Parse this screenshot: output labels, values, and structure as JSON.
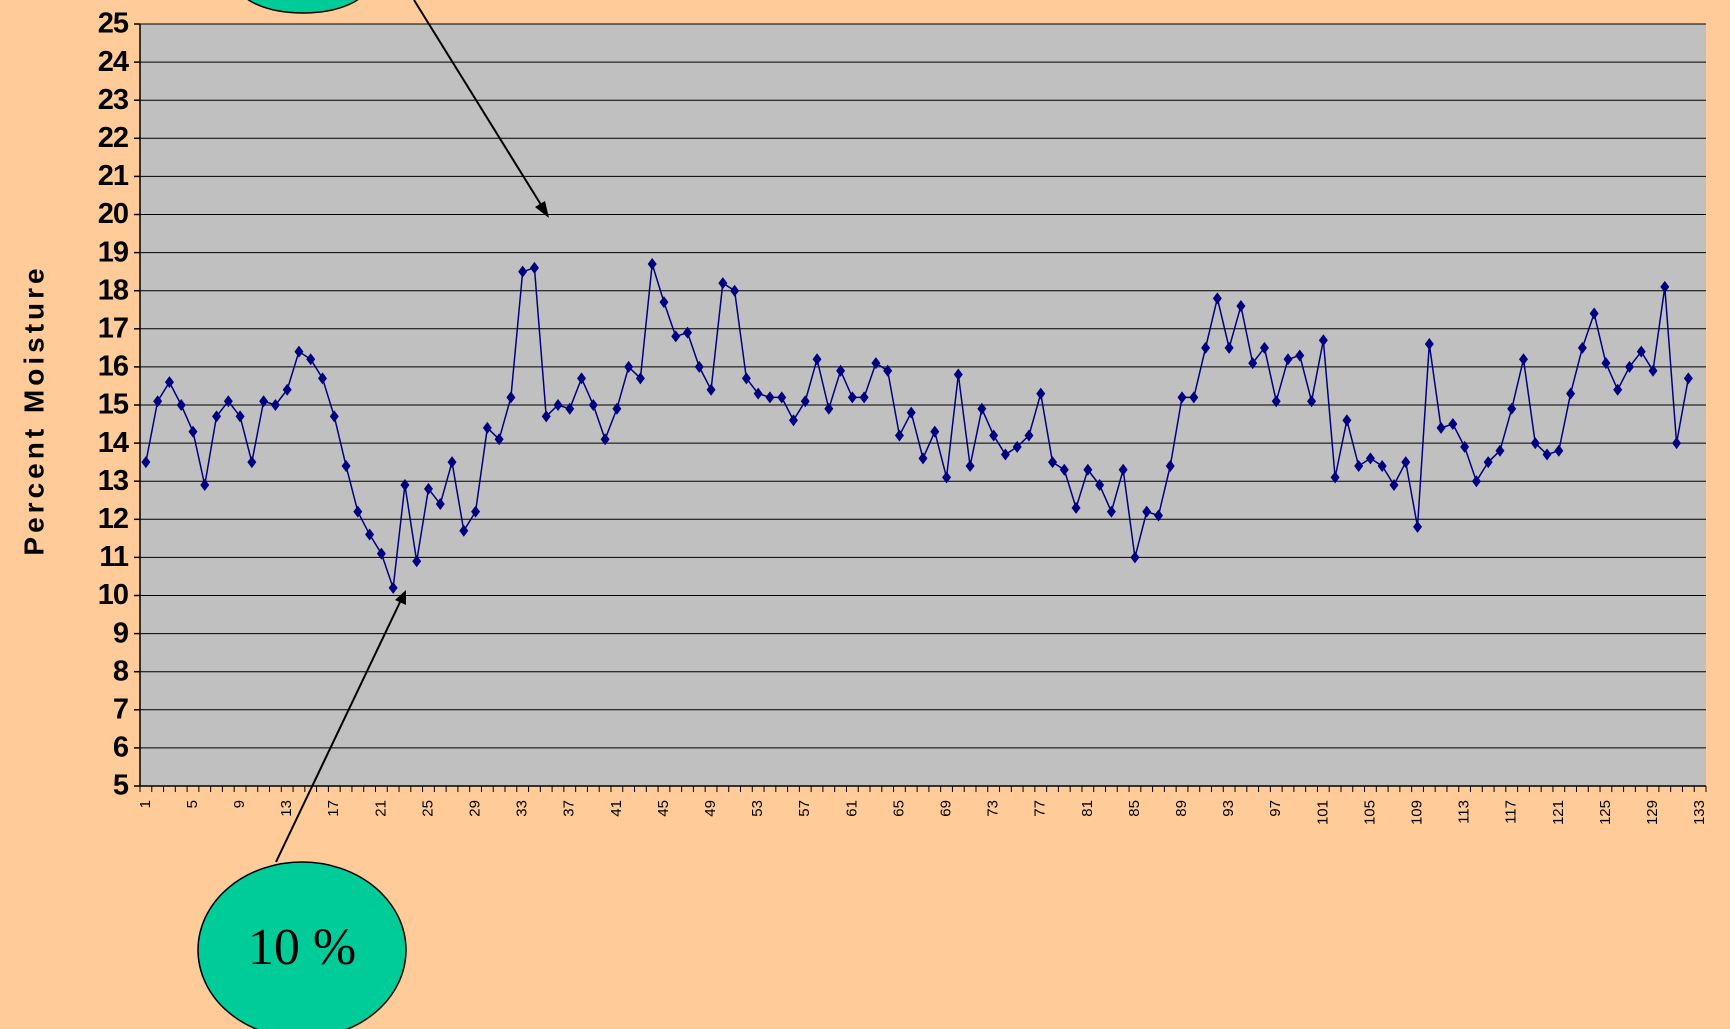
{
  "chart_data": {
    "type": "line",
    "y_label": "Percent Moisture",
    "categories": [
      1,
      null,
      null,
      null,
      5,
      null,
      null,
      null,
      9,
      null,
      null,
      null,
      13,
      null,
      null,
      null,
      17,
      null,
      null,
      null,
      21,
      null,
      null,
      null,
      25,
      null,
      null,
      null,
      29,
      null,
      null,
      null,
      33,
      null,
      null,
      null,
      37,
      null,
      null,
      null,
      41,
      null,
      null,
      null,
      45,
      null,
      null,
      null,
      49,
      null,
      null,
      null,
      53,
      null,
      null,
      null,
      57,
      null,
      null,
      null,
      61,
      null,
      null,
      null,
      65,
      null,
      null,
      null,
      69,
      null,
      null,
      null,
      73,
      null,
      null,
      null,
      77,
      null,
      null,
      null,
      81,
      null,
      null,
      null,
      85,
      null,
      null,
      null,
      89,
      null,
      null,
      null,
      93,
      null,
      null,
      null,
      97,
      null,
      null,
      null,
      101,
      null,
      null,
      null,
      105,
      null,
      null,
      null,
      109,
      null,
      null,
      null,
      113,
      null,
      null,
      null,
      117,
      null,
      null,
      null,
      121,
      null,
      null,
      null,
      125,
      null,
      null,
      null,
      129,
      null,
      null,
      null,
      133
    ],
    "series": [
      {
        "color": "#000080",
        "values": [
          13.5,
          15.1,
          15.6,
          15.0,
          14.3,
          12.9,
          14.7,
          15.1,
          14.7,
          13.5,
          15.1,
          15.0,
          15.4,
          16.4,
          16.2,
          15.7,
          14.7,
          13.4,
          12.2,
          11.6,
          11.1,
          10.2,
          12.9,
          10.9,
          12.8,
          12.4,
          13.5,
          11.7,
          12.2,
          14.4,
          14.1,
          15.2,
          18.5,
          18.6,
          14.7,
          15.0,
          14.9,
          15.7,
          15.0,
          14.1,
          14.9,
          16.0,
          15.7,
          18.7,
          17.7,
          16.8,
          16.9,
          16.0,
          15.4,
          18.2,
          18.0,
          15.7,
          15.3,
          15.2,
          15.2,
          14.6,
          15.1,
          16.2,
          14.9,
          15.9,
          15.2,
          15.2,
          16.1,
          15.9,
          14.2,
          14.8,
          13.6,
          14.3,
          13.1,
          15.8,
          13.4,
          14.9,
          14.2,
          13.7,
          13.9,
          14.2,
          15.3,
          13.5,
          13.3,
          12.3,
          13.3,
          12.9,
          12.2,
          13.3,
          11.0,
          12.2,
          12.1,
          13.4,
          15.2,
          15.2,
          16.5,
          17.8,
          16.5,
          17.6,
          16.1,
          16.5,
          15.1,
          16.2,
          16.3,
          15.1,
          16.7,
          13.1,
          14.6,
          13.4,
          13.6,
          13.4,
          12.9,
          13.5,
          11.8,
          16.6,
          14.4,
          14.5,
          13.9,
          13.0,
          13.5,
          13.8,
          14.9,
          16.2,
          14.0,
          13.7,
          13.8,
          15.3,
          16.5,
          17.4,
          16.1,
          15.4,
          16.0,
          16.4,
          15.9,
          18.1,
          14.0,
          15.7,
          null
        ]
      }
    ],
    "ylim": [
      5,
      25
    ],
    "yticks": [
      5,
      6,
      7,
      8,
      9,
      10,
      11,
      12,
      13,
      14,
      15,
      16,
      17,
      18,
      19,
      20,
      21,
      22,
      23,
      24,
      25
    ],
    "grid": true,
    "annotations": [
      {
        "text": "10 %"
      }
    ]
  }
}
